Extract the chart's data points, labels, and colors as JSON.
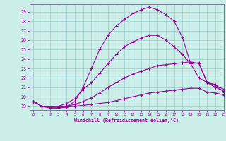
{
  "xlabel": "Windchill (Refroidissement éolien,°C)",
  "background_color": "#cceee8",
  "grid_color": "#99cccc",
  "line_color": "#990099",
  "spine_color": "#666688",
  "xlim": [
    -0.5,
    23
  ],
  "ylim": [
    18.6,
    29.8
  ],
  "xticks": [
    0,
    1,
    2,
    3,
    4,
    5,
    6,
    7,
    8,
    9,
    10,
    11,
    12,
    13,
    14,
    15,
    16,
    17,
    18,
    19,
    20,
    21,
    22,
    23
  ],
  "yticks": [
    19,
    20,
    21,
    22,
    23,
    24,
    25,
    26,
    27,
    28,
    29
  ],
  "curve1_x": [
    0,
    1,
    2,
    3,
    4,
    5,
    6,
    7,
    8,
    9,
    10,
    11,
    12,
    13,
    14,
    15,
    16,
    17,
    18,
    19,
    20,
    21,
    22,
    23
  ],
  "curve1_y": [
    19.5,
    19.0,
    18.8,
    18.8,
    18.9,
    19.0,
    19.1,
    19.2,
    19.3,
    19.4,
    19.6,
    19.8,
    20.0,
    20.2,
    20.4,
    20.5,
    20.6,
    20.7,
    20.8,
    20.9,
    20.9,
    20.5,
    20.4,
    20.2
  ],
  "curve2_x": [
    0,
    1,
    2,
    3,
    4,
    5,
    6,
    7,
    8,
    9,
    10,
    11,
    12,
    13,
    14,
    15,
    16,
    17,
    18,
    19,
    20,
    21,
    22,
    23
  ],
  "curve2_y": [
    19.5,
    19.0,
    18.9,
    18.9,
    19.0,
    19.2,
    19.5,
    19.9,
    20.4,
    21.0,
    21.5,
    22.0,
    22.4,
    22.7,
    23.0,
    23.3,
    23.4,
    23.5,
    23.6,
    23.7,
    23.5,
    21.5,
    21.0,
    20.6
  ],
  "curve3_x": [
    0,
    1,
    2,
    3,
    4,
    5,
    6,
    7,
    8,
    9,
    10,
    11,
    12,
    13,
    14,
    15,
    16,
    17,
    18,
    19,
    20,
    21,
    22,
    23
  ],
  "curve3_y": [
    19.5,
    19.0,
    18.9,
    19.0,
    19.3,
    19.8,
    20.8,
    21.5,
    22.5,
    23.5,
    24.5,
    25.3,
    25.8,
    26.2,
    26.5,
    26.5,
    26.0,
    25.3,
    24.5,
    23.5,
    22.0,
    21.5,
    21.2,
    20.8
  ],
  "curve4_x": [
    0,
    1,
    2,
    3,
    4,
    5,
    6,
    7,
    8,
    9,
    10,
    11,
    12,
    13,
    14,
    15,
    16,
    17,
    18,
    19,
    20,
    21,
    22,
    23
  ],
  "curve4_y": [
    19.5,
    19.0,
    18.9,
    18.9,
    19.0,
    19.5,
    21.0,
    23.0,
    25.0,
    26.5,
    27.5,
    28.2,
    28.8,
    29.2,
    29.5,
    29.2,
    28.7,
    28.0,
    26.3,
    23.5,
    23.6,
    21.5,
    21.3,
    20.5
  ]
}
